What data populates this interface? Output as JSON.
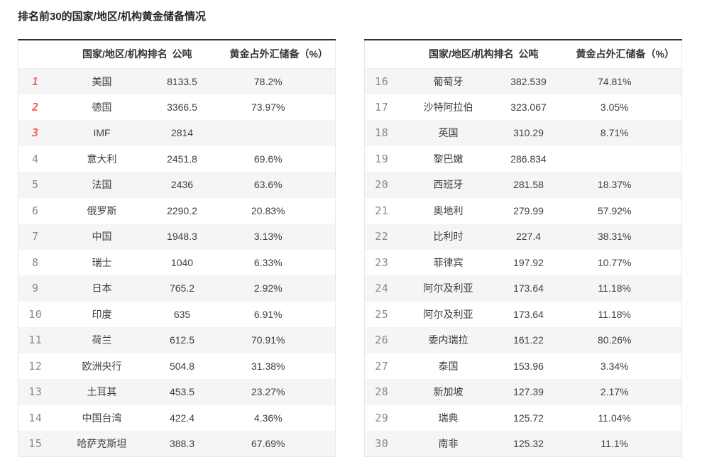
{
  "title": "排名前30的国家/地区/机构黄金储备情况",
  "columns": {
    "rank_name": "国家/地区/机构排名",
    "tonnes": "公吨",
    "pct": "黄金占外汇储备（%）"
  },
  "colors": {
    "top3_rank_red": "#f0605e",
    "rank_gray": "#8a8a8a",
    "alt_row_bg": "#f5f5f5",
    "table_top_border": "#2f2f2f",
    "body_text": "#3f3f3f"
  },
  "tables": [
    {
      "rows": [
        {
          "rank": "1",
          "name": "美国",
          "tonnes": "8133.5",
          "pct": "78.2%"
        },
        {
          "rank": "2",
          "name": "德国",
          "tonnes": "3366.5",
          "pct": "73.97%"
        },
        {
          "rank": "3",
          "name": "IMF",
          "tonnes": "2814",
          "pct": ""
        },
        {
          "rank": "4",
          "name": "意大利",
          "tonnes": "2451.8",
          "pct": "69.6%"
        },
        {
          "rank": "5",
          "name": "法国",
          "tonnes": "2436",
          "pct": "63.6%"
        },
        {
          "rank": "6",
          "name": "俄罗斯",
          "tonnes": "2290.2",
          "pct": "20.83%"
        },
        {
          "rank": "7",
          "name": "中国",
          "tonnes": "1948.3",
          "pct": "3.13%"
        },
        {
          "rank": "8",
          "name": "瑞士",
          "tonnes": "1040",
          "pct": "6.33%"
        },
        {
          "rank": "9",
          "name": "日本",
          "tonnes": "765.2",
          "pct": "2.92%"
        },
        {
          "rank": "10",
          "name": "印度",
          "tonnes": "635",
          "pct": "6.91%"
        },
        {
          "rank": "11",
          "name": "荷兰",
          "tonnes": "612.5",
          "pct": "70.91%"
        },
        {
          "rank": "12",
          "name": "欧洲央行",
          "tonnes": "504.8",
          "pct": "31.38%"
        },
        {
          "rank": "13",
          "name": "土耳其",
          "tonnes": "453.5",
          "pct": "23.27%"
        },
        {
          "rank": "14",
          "name": "中国台湾",
          "tonnes": "422.4",
          "pct": "4.36%"
        },
        {
          "rank": "15",
          "name": "哈萨克斯坦",
          "tonnes": "388.3",
          "pct": "67.69%"
        }
      ]
    },
    {
      "rows": [
        {
          "rank": "16",
          "name": "葡萄牙",
          "tonnes": "382.539",
          "pct": "74.81%"
        },
        {
          "rank": "17",
          "name": "沙特阿拉伯",
          "tonnes": "323.067",
          "pct": "3.05%"
        },
        {
          "rank": "18",
          "name": "英国",
          "tonnes": "310.29",
          "pct": "8.71%"
        },
        {
          "rank": "19",
          "name": "黎巴嫩",
          "tonnes": "286.834",
          "pct": ""
        },
        {
          "rank": "20",
          "name": "西班牙",
          "tonnes": "281.58",
          "pct": "18.37%"
        },
        {
          "rank": "21",
          "name": "奥地利",
          "tonnes": "279.99",
          "pct": "57.92%"
        },
        {
          "rank": "22",
          "name": "比利时",
          "tonnes": "227.4",
          "pct": "38.31%"
        },
        {
          "rank": "23",
          "name": "菲律宾",
          "tonnes": "197.92",
          "pct": "10.77%"
        },
        {
          "rank": "24",
          "name": "阿尔及利亚",
          "tonnes": "173.64",
          "pct": "11.18%"
        },
        {
          "rank": "25",
          "name": "阿尔及利亚",
          "tonnes": "173.64",
          "pct": "11.18%"
        },
        {
          "rank": "26",
          "name": "委内瑞拉",
          "tonnes": "161.22",
          "pct": "80.26%"
        },
        {
          "rank": "27",
          "name": "泰国",
          "tonnes": "153.96",
          "pct": "3.34%"
        },
        {
          "rank": "28",
          "name": "新加坡",
          "tonnes": "127.39",
          "pct": "2.17%"
        },
        {
          "rank": "29",
          "name": "瑞典",
          "tonnes": "125.72",
          "pct": "11.04%"
        },
        {
          "rank": "30",
          "name": "南非",
          "tonnes": "125.32",
          "pct": "11.1%"
        }
      ]
    }
  ]
}
